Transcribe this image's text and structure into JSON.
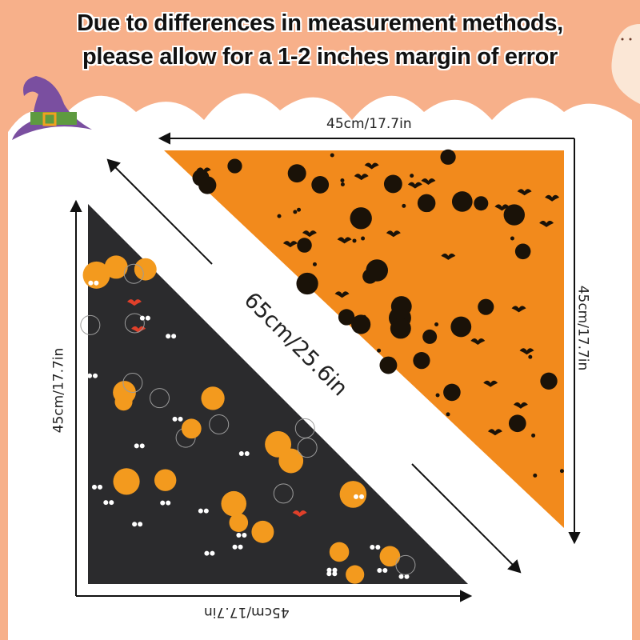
{
  "headline": {
    "line1": "Due to differences in measurement methods,",
    "line2": "please allow for a 1-2 inches margin of error"
  },
  "dimensions": {
    "top": "45cm/17.7in",
    "right": "45cm/17.7in",
    "diagonal": "65cm/25.6in",
    "left": "45cm/17.7in",
    "bottom": "45cm/17.7in"
  },
  "decorations": [
    "witch-hat-icon",
    "ghost-icon"
  ],
  "colors": {
    "banner": "#f7b08a",
    "orange_fabric": "#f28a1c",
    "dark_fabric": "#2b2b2d",
    "pattern_black": "#1a1208",
    "pumpkin": "#f39a1e"
  }
}
